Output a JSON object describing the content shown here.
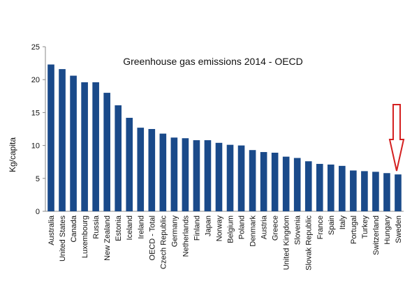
{
  "chart_data": {
    "type": "bar",
    "title": "Greenhouse gas emissions 2014 - OECD",
    "y_label": "Kg/capita",
    "categories": [
      "Australia",
      "United States",
      "Canada",
      "Luxembourg",
      "Russia",
      "New Zealand",
      "Estonia",
      "Iceland",
      "Ireland",
      "OECD - Total",
      "Czech Republic",
      "Germany",
      "Netherlands",
      "Finland",
      "Japan",
      "Norway",
      "Belgium",
      "Poland",
      "Denmark",
      "Austria",
      "Greece",
      "United Kingdom",
      "Slovenia",
      "Slovak Republic",
      "France",
      "Spain",
      "Italy",
      "Portugal",
      "Turkey",
      "Switzerland",
      "Hungary",
      "Sweden"
    ],
    "values": [
      22.3,
      21.6,
      20.6,
      19.6,
      19.6,
      18.0,
      16.1,
      14.2,
      12.7,
      12.5,
      11.8,
      11.2,
      11.1,
      10.8,
      10.8,
      10.4,
      10.1,
      10.0,
      9.3,
      9.0,
      8.9,
      8.3,
      8.1,
      7.6,
      7.2,
      7.1,
      6.9,
      6.2,
      6.1,
      6.0,
      5.8,
      5.6
    ],
    "color": "#1a4a8a",
    "ylim": [
      0,
      25
    ],
    "yticks": [
      0,
      5,
      10,
      15,
      20,
      25
    ],
    "grid": false
  }
}
